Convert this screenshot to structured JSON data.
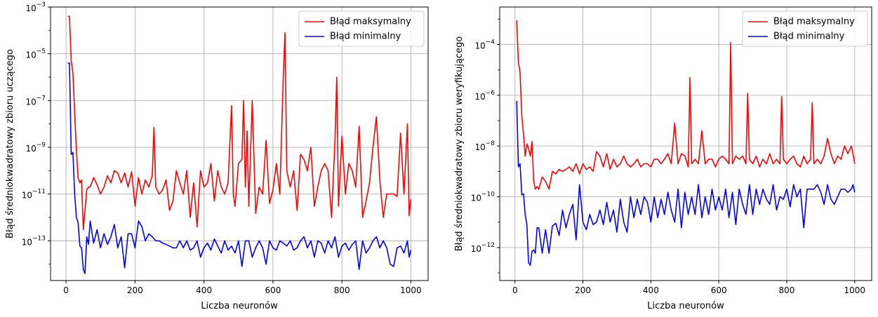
{
  "chart_data": [
    {
      "type": "line",
      "xlabel": "Liczba neuronów",
      "ylabel": "Błąd średniokwadratowy zbioru uczącego",
      "xlim": [
        -45,
        1050
      ],
      "ylim": [
        2e-15,
        0.001
      ],
      "yscale": "log",
      "xticks": [
        0,
        200,
        400,
        600,
        800,
        1000
      ],
      "yticks": [
        1e-13,
        1e-11,
        1e-09,
        1e-07,
        1e-05,
        0.001
      ],
      "ytick_labels": [
        "10−13",
        "10−11",
        "10−9",
        "10−7",
        "10−5",
        "10−3"
      ],
      "grid": true,
      "legend_position": "top-right",
      "series": [
        {
          "name": "Błąd maksymalny",
          "color": "#ff0000",
          "x": [
            5,
            10,
            15,
            20,
            25,
            30,
            35,
            40,
            45,
            50,
            55,
            60,
            65,
            70,
            80,
            90,
            100,
            110,
            120,
            130,
            140,
            150,
            160,
            170,
            180,
            190,
            200,
            210,
            220,
            230,
            240,
            250,
            255,
            260,
            270,
            280,
            290,
            300,
            310,
            320,
            330,
            340,
            350,
            360,
            370,
            380,
            390,
            400,
            410,
            420,
            430,
            440,
            450,
            460,
            470,
            480,
            485,
            490,
            500,
            510,
            515,
            520,
            525,
            530,
            540,
            550,
            560,
            570,
            580,
            590,
            600,
            610,
            620,
            630,
            635,
            640,
            650,
            660,
            670,
            680,
            690,
            700,
            710,
            720,
            730,
            740,
            750,
            760,
            770,
            780,
            785,
            790,
            800,
            810,
            820,
            830,
            840,
            850,
            860,
            870,
            880,
            890,
            900,
            910,
            920,
            930,
            940,
            950,
            960,
            970,
            980,
            990,
            995,
            1000
          ],
          "values": [
            0.0004,
            0.0004,
            5e-06,
            1.5e-06,
            3e-08,
            8e-10,
            5e-11,
            3e-11,
            4e-11,
            3e-13,
            2e-12,
            1.5e-11,
            2e-11,
            2e-11,
            5e-11,
            2.5e-11,
            1e-11,
            2e-11,
            6e-11,
            3e-11,
            1e-10,
            8e-11,
            3e-11,
            8e-11,
            2e-11,
            9e-11,
            3e-12,
            5e-11,
            1e-11,
            4e-11,
            2e-11,
            6e-11,
            7e-09,
            2e-11,
            1e-11,
            1.5e-11,
            4e-11,
            2e-12,
            5e-12,
            1e-10,
            3e-11,
            1e-11,
            1e-10,
            1e-12,
            3e-11,
            4e-13,
            1e-10,
            2e-11,
            3e-11,
            2e-10,
            5e-12,
            1e-10,
            2e-11,
            1e-11,
            3e-11,
            6e-08,
            1e-11,
            3e-12,
            2e-10,
            3e-10,
            1e-07,
            2e-11,
            5e-09,
            3e-12,
            1e-07,
            1.5e-12,
            2e-11,
            1e-11,
            2e-09,
            4e-12,
            1.5e-11,
            2e-10,
            1e-11,
            1e-06,
            8e-05,
            1e-10,
            2e-11,
            1e-10,
            2e-12,
            5e-10,
            3e-10,
            1e-10,
            1e-09,
            3e-12,
            2e-11,
            1e-10,
            2e-10,
            1e-10,
            1e-12,
            2e-09,
            1e-06,
            3e-12,
            3e-09,
            1e-11,
            2e-10,
            1e-10,
            2e-11,
            8e-09,
            1e-12,
            5e-12,
            3e-11,
            1e-09,
            2e-08,
            4e-11,
            1e-12,
            1e-11,
            1e-11,
            1e-11,
            8e-12,
            4e-09,
            1e-11,
            1e-08,
            1.2e-12,
            6e-12
          ]
        },
        {
          "name": "Błąd minimalny",
          "color": "#0000ff",
          "x": [
            5,
            10,
            15,
            20,
            25,
            30,
            35,
            40,
            45,
            50,
            55,
            60,
            65,
            70,
            80,
            90,
            100,
            110,
            120,
            130,
            140,
            150,
            160,
            170,
            180,
            190,
            200,
            210,
            220,
            230,
            240,
            250,
            260,
            270,
            280,
            290,
            300,
            310,
            320,
            330,
            340,
            350,
            360,
            370,
            380,
            390,
            400,
            410,
            420,
            430,
            440,
            450,
            460,
            470,
            480,
            490,
            500,
            510,
            520,
            530,
            540,
            550,
            560,
            570,
            580,
            590,
            600,
            610,
            620,
            630,
            640,
            650,
            660,
            670,
            680,
            690,
            700,
            710,
            720,
            730,
            740,
            750,
            760,
            770,
            780,
            790,
            800,
            810,
            820,
            830,
            840,
            850,
            860,
            870,
            880,
            890,
            900,
            910,
            920,
            930,
            940,
            950,
            960,
            970,
            980,
            990,
            995,
            1000
          ],
          "values": [
            4e-06,
            4e-06,
            5e-10,
            6e-10,
            1e-11,
            1e-12,
            6e-13,
            6e-14,
            5e-14,
            6e-15,
            4e-15,
            1.5e-13,
            7e-14,
            7e-13,
            8e-14,
            3e-13,
            5e-14,
            2e-13,
            7e-14,
            1.5e-13,
            5e-13,
            5e-14,
            1.5e-13,
            7e-15,
            2e-13,
            2e-13,
            5e-14,
            7e-13,
            4e-13,
            1e-13,
            2e-13,
            1.5e-13,
            1e-13,
            1e-13,
            8e-14,
            7e-14,
            6e-14,
            5e-14,
            5e-14,
            1e-13,
            5e-14,
            1e-13,
            4e-14,
            5e-14,
            1e-13,
            2e-14,
            5e-14,
            8e-14,
            4e-14,
            1.2e-13,
            6e-14,
            3e-14,
            1e-13,
            4e-14,
            6e-14,
            3e-14,
            1e-13,
            8e-15,
            1e-13,
            1e-13,
            2e-14,
            5e-14,
            1e-13,
            5e-14,
            1e-14,
            1e-13,
            5e-14,
            4e-14,
            1e-13,
            8e-14,
            6e-14,
            1e-13,
            4e-14,
            5e-14,
            1e-13,
            1.5e-13,
            5e-14,
            1e-13,
            2e-14,
            1e-13,
            8e-14,
            3e-14,
            1e-13,
            5e-14,
            1.5e-13,
            2e-14,
            6e-14,
            8e-14,
            4e-14,
            7e-14,
            1e-13,
            6e-15,
            1e-13,
            3e-14,
            5e-14,
            1e-13,
            1.5e-13,
            5e-14,
            1e-13,
            5e-14,
            1e-14,
            8e-15,
            5e-14,
            6e-14,
            3e-14,
            1e-13,
            2e-14,
            4e-14
          ]
        }
      ]
    },
    {
      "type": "line",
      "xlabel": "Liczba neuronów",
      "ylabel": "Błąd średniokwadratowy zbioru weryfikującego",
      "xlim": [
        -45,
        1050
      ],
      "ylim": [
        5e-14,
        0.003
      ],
      "yscale": "log",
      "xticks": [
        0,
        200,
        400,
        600,
        800,
        1000
      ],
      "yticks": [
        1e-12,
        1e-10,
        1e-08,
        1e-06,
        0.0001
      ],
      "ytick_labels": [
        "10−12",
        "10−10",
        "10−8",
        "10−6",
        "10−4"
      ],
      "grid": true,
      "legend_position": "top-right",
      "series": [
        {
          "name": "Błąd maksymalny",
          "color": "#ff0000",
          "x": [
            5,
            10,
            15,
            20,
            25,
            30,
            35,
            40,
            45,
            50,
            55,
            60,
            65,
            70,
            80,
            90,
            100,
            110,
            120,
            130,
            140,
            150,
            160,
            170,
            180,
            190,
            200,
            210,
            220,
            230,
            240,
            250,
            260,
            270,
            280,
            290,
            300,
            310,
            320,
            330,
            340,
            350,
            360,
            370,
            380,
            390,
            400,
            410,
            420,
            430,
            440,
            450,
            460,
            470,
            480,
            490,
            500,
            510,
            515,
            520,
            530,
            540,
            550,
            560,
            570,
            580,
            590,
            600,
            610,
            620,
            630,
            635,
            640,
            650,
            660,
            670,
            680,
            685,
            690,
            700,
            710,
            720,
            730,
            740,
            750,
            760,
            770,
            780,
            785,
            790,
            800,
            810,
            820,
            830,
            840,
            850,
            860,
            870,
            875,
            880,
            890,
            900,
            910,
            920,
            930,
            940,
            950,
            960,
            970,
            980,
            990,
            995,
            1000
          ],
          "values": [
            0.0009,
            2e-05,
            8e-06,
            1.5e-07,
            3e-08,
            4e-09,
            1.2e-08,
            8e-09,
            4e-09,
            1.5e-08,
            4e-10,
            2e-10,
            2.5e-10,
            2e-10,
            6e-10,
            4e-10,
            2e-10,
            1e-09,
            8e-10,
            1.2e-09,
            1e-09,
            1.2e-09,
            1.5e-09,
            1e-09,
            2e-09,
            8e-10,
            2e-09,
            1.2e-09,
            1.5e-09,
            1e-09,
            6e-09,
            4e-09,
            1.5e-09,
            5e-09,
            1.2e-09,
            3e-09,
            1.5e-09,
            2e-09,
            4e-09,
            2e-09,
            1.5e-09,
            2e-09,
            3e-09,
            1.5e-09,
            2e-09,
            2e-09,
            1.5e-09,
            3e-09,
            3e-09,
            2e-09,
            3e-09,
            5e-09,
            2e-09,
            8e-08,
            2e-09,
            5e-09,
            4e-09,
            1.5e-09,
            5e-06,
            2e-09,
            3e-09,
            2e-09,
            4e-08,
            2e-09,
            3e-09,
            3e-09,
            1.5e-09,
            3e-09,
            4e-09,
            3e-09,
            2e-09,
            0.00012,
            2e-09,
            4e-09,
            3e-09,
            4e-09,
            2e-09,
            1.2e-06,
            3e-09,
            2e-09,
            4e-09,
            1.5e-09,
            3e-09,
            2e-09,
            5e-09,
            2e-09,
            3e-09,
            2e-09,
            9e-07,
            3e-09,
            2e-09,
            3e-09,
            4e-09,
            2e-09,
            1.5e-09,
            4e-09,
            2e-09,
            3e-09,
            5e-07,
            2e-09,
            3e-09,
            2e-09,
            4e-09,
            2e-08,
            5e-09,
            2e-09,
            4e-09,
            3e-09,
            1e-08,
            5e-09,
            1e-08,
            5e-09,
            2e-09
          ]
        },
        {
          "name": "Błąd minimalny",
          "color": "#0000ff",
          "x": [
            5,
            10,
            15,
            20,
            25,
            30,
            35,
            40,
            45,
            50,
            55,
            60,
            65,
            70,
            80,
            90,
            100,
            110,
            120,
            130,
            140,
            150,
            160,
            170,
            180,
            190,
            200,
            210,
            220,
            230,
            240,
            250,
            260,
            270,
            280,
            290,
            300,
            310,
            320,
            330,
            340,
            350,
            360,
            370,
            380,
            390,
            400,
            410,
            420,
            430,
            440,
            450,
            460,
            470,
            480,
            490,
            500,
            510,
            520,
            530,
            540,
            550,
            560,
            570,
            580,
            590,
            600,
            610,
            620,
            630,
            640,
            650,
            660,
            670,
            680,
            690,
            700,
            710,
            720,
            730,
            740,
            750,
            760,
            770,
            780,
            790,
            800,
            810,
            820,
            830,
            840,
            850,
            860,
            870,
            880,
            890,
            900,
            910,
            920,
            930,
            940,
            950,
            960,
            970,
            980,
            990,
            995,
            1000
          ],
          "values": [
            6e-07,
            1.5e-09,
            2e-09,
            1.2e-10,
            1.3e-10,
            2e-11,
            8e-12,
            2.5e-13,
            2e-13,
            7e-13,
            8e-13,
            6e-13,
            6e-12,
            6e-12,
            6e-13,
            5e-12,
            6e-13,
            7e-12,
            9e-12,
            3e-12,
            3e-11,
            6e-12,
            2e-11,
            5e-11,
            2e-12,
            3e-10,
            1e-11,
            5e-12,
            2e-11,
            8e-12,
            1e-11,
            3e-11,
            8e-12,
            6e-11,
            1e-11,
            3e-11,
            4e-12,
            8e-11,
            1e-11,
            4e-12,
            1e-10,
            1.5e-11,
            8e-11,
            2e-11,
            1e-10,
            6e-11,
            1e-11,
            1e-10,
            1.5e-11,
            8e-11,
            2e-11,
            1.5e-10,
            3e-11,
            1e-11,
            2e-10,
            6e-12,
            1.5e-10,
            2e-11,
            1e-10,
            2e-11,
            3e-10,
            1.5e-11,
            1e-10,
            2e-11,
            2e-10,
            3e-11,
            1e-10,
            3e-11,
            2e-10,
            1.5e-11,
            1.5e-10,
            8e-12,
            2e-10,
            5e-11,
            2e-11,
            3e-10,
            2e-11,
            2e-10,
            5e-11,
            2e-10,
            8e-11,
            5e-11,
            3e-10,
            3e-11,
            1e-10,
            8e-11,
            2e-10,
            4e-11,
            3e-10,
            1e-10,
            2e-10,
            6e-12,
            2e-10,
            2e-10,
            2e-10,
            3e-10,
            1.5e-10,
            5e-11,
            3e-10,
            8e-11,
            5e-11,
            1e-10,
            2e-10,
            2e-10,
            1.5e-10,
            2e-10,
            3e-10,
            1.5e-10
          ]
        }
      ]
    }
  ]
}
